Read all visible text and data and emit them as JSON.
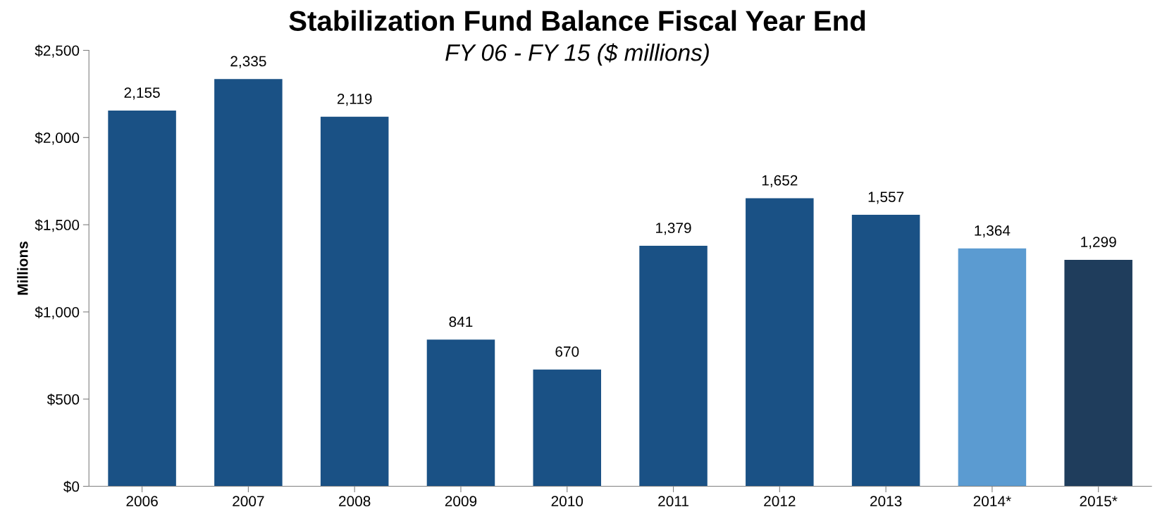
{
  "chart_data": {
    "type": "bar",
    "title": "Stabilization Fund Balance Fiscal Year End",
    "subtitle": "FY 06 - FY 15 ($ millions)",
    "ylabel": "Millions",
    "categories": [
      "2006",
      "2007",
      "2008",
      "2009",
      "2010",
      "2011",
      "2012",
      "2013",
      "2014*",
      "2015*"
    ],
    "values": [
      2155,
      2335,
      2119,
      841,
      670,
      1379,
      1652,
      1557,
      1364,
      1299
    ],
    "colors": [
      "#1a5185",
      "#1a5185",
      "#1a5185",
      "#1a5185",
      "#1a5185",
      "#1a5185",
      "#1a5185",
      "#1a5185",
      "#5b9bd1",
      "#1f3d5c"
    ],
    "ylim": [
      0,
      2500
    ],
    "yticks": [
      {
        "value": 0,
        "label": "$0"
      },
      {
        "value": 500,
        "label": "$500"
      },
      {
        "value": 1000,
        "label": "$1,000"
      },
      {
        "value": 1500,
        "label": "$1,500"
      },
      {
        "value": 2000,
        "label": "$2,000"
      },
      {
        "value": 2500,
        "label": "$2,500"
      }
    ],
    "value_labels": [
      "2,155",
      "2,335",
      "2,119",
      "841",
      "670",
      "1,379",
      "1,652",
      "1,557",
      "1,364",
      "1,299"
    ],
    "grid": false,
    "legend": false
  }
}
